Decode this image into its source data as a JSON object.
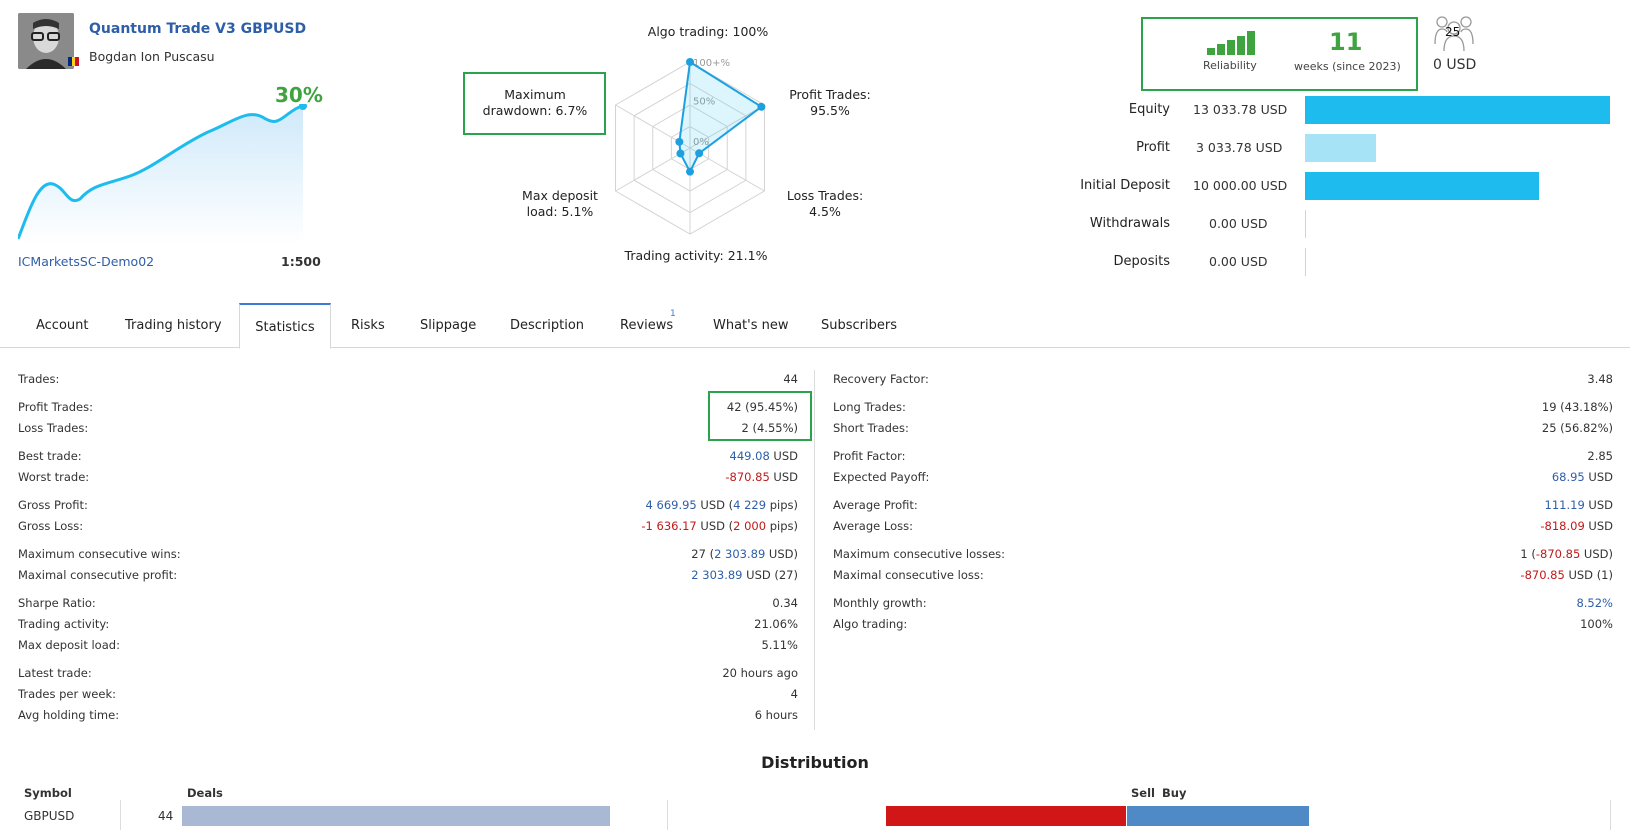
{
  "header": {
    "title": "Quantum Trade V3 GBPUSD",
    "author": "Bogdan Ion Puscasu",
    "growth": "30%",
    "broker": "ICMarketsSC-Demo02",
    "leverage": "1:500"
  },
  "radar": {
    "algo": "Algo trading: 100%",
    "profit": "Profit Trades:\n95.5%",
    "loss": "Loss Trades:\n4.5%",
    "activity": "Trading activity: 21.1%",
    "deposit": "Max deposit\nload: 5.1%",
    "drawdown": "Maximum\ndrawdown: 6.7%",
    "axis_ticks": [
      "100+%",
      "50%",
      "0%"
    ],
    "values_pct": [
      100,
      95.5,
      4.5,
      21.1,
      5.1,
      6.7
    ]
  },
  "reliability": {
    "label": "Reliability",
    "weeks": "11",
    "weeks_label": "weeks (since 2023)",
    "subscribers": "25",
    "subscribers_money": "0 USD",
    "green": "#3fa33f"
  },
  "balance": [
    {
      "label": "Equity",
      "value": "13 033.78 USD",
      "amount": 13033.78
    },
    {
      "label": "Profit",
      "value": "3 033.78 USD",
      "amount": 3033.78
    },
    {
      "label": "Initial Deposit",
      "value": "10 000.00 USD",
      "amount": 10000.0
    },
    {
      "label": "Withdrawals",
      "value": "0.00 USD",
      "amount": 0
    },
    {
      "label": "Deposits",
      "value": "0.00 USD",
      "amount": 0
    }
  ],
  "tabs": [
    "Account",
    "Trading history",
    "Statistics",
    "Risks",
    "Slippage",
    "Description",
    "Reviews",
    "What's new",
    "Subscribers"
  ],
  "active_tab": "Statistics",
  "reviews_badge": "1",
  "stats_left": [
    {
      "label": "Trades:",
      "value": "44"
    },
    {
      "label": "Profit Trades:",
      "value": "42 (95.45%)"
    },
    {
      "label": "Loss Trades:",
      "value": "2 (4.55%)"
    },
    {
      "label": "Best trade:",
      "value": "449.08",
      "unit": " USD"
    },
    {
      "label": "Worst trade:",
      "value": "-870.85",
      "unit": " USD"
    },
    {
      "label": "Gross Profit:",
      "value": "4 669.95",
      "mid": " USD (",
      "pips": "4 229",
      "tail": " pips)"
    },
    {
      "label": "Gross Loss:",
      "value": "-1 636.17",
      "mid": " USD (",
      "pips": "2 000",
      "tail": " pips)"
    },
    {
      "label": "Maximum consecutive wins:",
      "pre": "27 (",
      "value": "2 303.89",
      "unit": " USD)"
    },
    {
      "label": "Maximal consecutive profit:",
      "value": "2 303.89",
      "unit": " USD (27)"
    },
    {
      "label": "Sharpe Ratio:",
      "value": "0.34"
    },
    {
      "label": "Trading activity:",
      "value": "21.06%"
    },
    {
      "label": "Max deposit load:",
      "value": "5.11%"
    },
    {
      "label": "Latest trade:",
      "value": "20 hours ago"
    },
    {
      "label": "Trades per week:",
      "value": "4"
    },
    {
      "label": "Avg holding time:",
      "value": "6 hours"
    }
  ],
  "stats_right": [
    {
      "label": "Recovery Factor:",
      "value": "3.48"
    },
    {
      "label": "Long Trades:",
      "value": "19 (43.18%)"
    },
    {
      "label": "Short Trades:",
      "value": "25 (56.82%)"
    },
    {
      "label": "Profit Factor:",
      "value": "2.85"
    },
    {
      "label": "Expected Payoff:",
      "value": "68.95",
      "unit": " USD"
    },
    {
      "label": "Average Profit:",
      "value": "111.19",
      "unit": " USD"
    },
    {
      "label": "Average Loss:",
      "value": "-818.09",
      "unit": " USD"
    },
    {
      "label": "Maximum consecutive losses:",
      "pre": "1 (",
      "value": "-870.85",
      "unit": " USD)"
    },
    {
      "label": "Maximal consecutive loss:",
      "value": "-870.85",
      "unit": " USD (1)"
    },
    {
      "label": "Monthly growth:",
      "value": "8.52%"
    },
    {
      "label": "Algo trading:",
      "value": "100%"
    }
  ],
  "distribution": {
    "title": "Distribution",
    "headers": {
      "symbol": "Symbol",
      "deals": "Deals",
      "sell": "Sell",
      "buy": "Buy"
    },
    "rows": [
      {
        "symbol": "GBPUSD",
        "deals": "44",
        "sell": 25,
        "buy": 19
      }
    ],
    "colors": {
      "deals": "#a9b8d3",
      "sell": "#d01616",
      "buy": "#4f89c6"
    }
  },
  "colors": {
    "accent": "#2e5ea8",
    "bar_strong": "#1ebbee",
    "bar_light": "#a6e3f7",
    "highlight": "#2ba34b"
  }
}
